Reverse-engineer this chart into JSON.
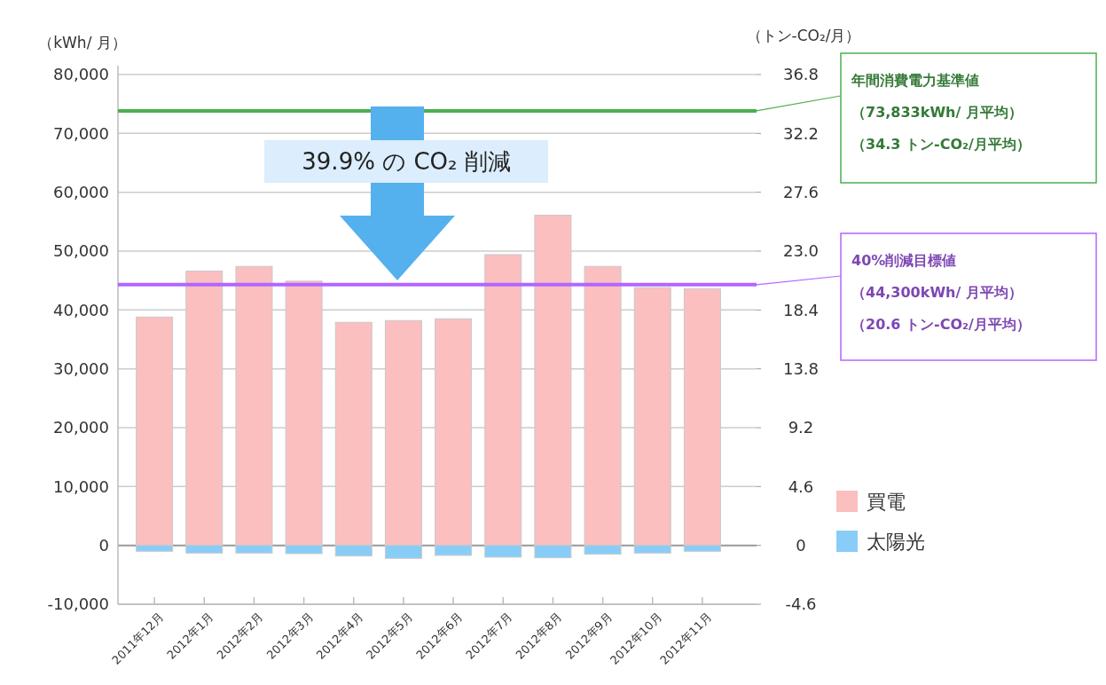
{
  "chart_data": {
    "type": "bar",
    "stacked": true,
    "categories": [
      "2011年12月",
      "2012年1月",
      "2012年2月",
      "2012年3月",
      "2012年4月",
      "2012年5月",
      "2012年6月",
      "2012年7月",
      "2012年8月",
      "2012年9月",
      "2012年10月",
      "2012年11月"
    ],
    "series": [
      {
        "name": "買電",
        "color": "#fbbfbf",
        "values": [
          38800,
          46600,
          47400,
          44900,
          37900,
          38200,
          38500,
          49400,
          56100,
          47400,
          43800,
          43600
        ]
      },
      {
        "name": "太陽光",
        "color": "#88cdf8",
        "values": [
          -1000,
          -1300,
          -1300,
          -1400,
          -1800,
          -2200,
          -1700,
          -2000,
          -2100,
          -1500,
          -1300,
          -1000
        ]
      }
    ],
    "ylabel": "（kWh/ 月）",
    "y2label": "（トン-CO₂/月）",
    "ylim": [
      -10000,
      80000
    ],
    "yticks": [
      {
        "value": -10000,
        "label": "-10,000"
      },
      0,
      {
        "value": 10000,
        "label": "10,000"
      },
      {
        "value": 20000,
        "label": "20,000"
      },
      {
        "value": 30000,
        "label": "30,000"
      },
      {
        "value": 40000,
        "label": "40,000"
      },
      {
        "value": 50000,
        "label": "50,000"
      },
      {
        "value": 60000,
        "label": "60,000"
      },
      {
        "value": 70000,
        "label": "70,000"
      },
      {
        "value": 80000,
        "label": "80,000"
      }
    ],
    "y2lim": [
      -4.6,
      36.8
    ],
    "y2ticks": [
      -4.6,
      0,
      4.6,
      9.2,
      13.8,
      18.4,
      {
        "value": 23,
        "label": "23.0"
      },
      27.6,
      32.2,
      36.8
    ],
    "grid": "y",
    "legend": "bottom right",
    "ref_lines": [
      {
        "axis": "y",
        "value": 73833,
        "color": "#4caf50",
        "label": "年間消費電力基準値（73,833kWh/ 月平均）（34.3 トン-CO₂/月平均）"
      },
      {
        "axis": "y",
        "value": 44300,
        "color": "#b266ff",
        "label": "40%削減目標値（44,300kWh/ 月平均）（20.6 トン-CO₂/月平均）"
      }
    ],
    "annotations": [
      "39.9% の CO₂ 削減"
    ]
  }
}
